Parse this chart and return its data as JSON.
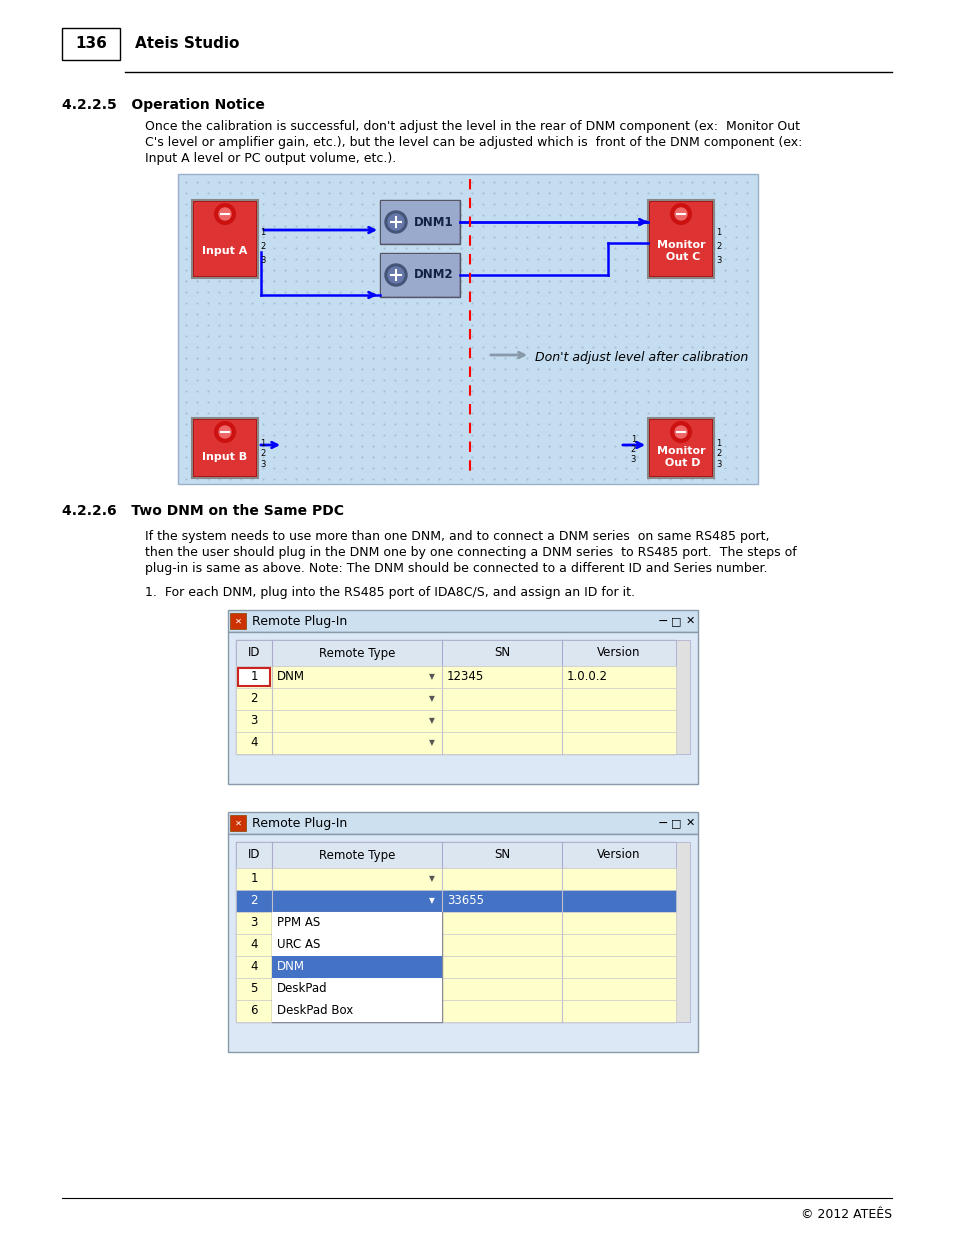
{
  "page_number": "136",
  "header_title": "Ateis Studio",
  "section_425": "4.2.2.5   Operation Notice",
  "para_425_line1": "Once the calibration is successful, don't adjust the level in the rear of DNM component (ex:  Monitor Out",
  "para_425_line2": "C's level or amplifier gain, etc.), but the level can be adjusted which is  front of the DNM component (ex:",
  "para_425_line3": "Input A level or PC output volume, etc.).",
  "section_426": "4.2.2.6   Two DNM on the Same PDC",
  "para_426_line1": "If the system needs to use more than one DNM, and to connect a DNM series  on same RS485 port,",
  "para_426_line2": "then the user should plug in the DNM one by one connecting a DNM series  to RS485 port.  The steps of",
  "para_426_line3": "plug-in is same as above. Note: The DNM should be connected to a different ID and Series number.",
  "step1_text": "1.  For each DNM, plug into the RS485 port of IDA8C/S, and assign an ID for it.",
  "footer_text": "© 2012 ATEÊS",
  "bg_color": "#ffffff",
  "diagram_bg": "#c5ddf0",
  "dot_color": "#a0bbd0",
  "t1_title": "Remote Plug-In",
  "t1_cols": [
    "ID",
    "Remote Type",
    "SN",
    "Version"
  ],
  "t1_data": [
    [
      "1",
      "DNM",
      "12345",
      "1.0.0.2"
    ],
    [
      "2",
      "",
      "",
      ""
    ],
    [
      "3",
      "",
      "",
      ""
    ],
    [
      "4",
      "",
      "",
      ""
    ]
  ],
  "t2_title": "Remote Plug-In",
  "t2_cols": [
    "ID",
    "Remote Type",
    "SN",
    "Version"
  ],
  "t2_data": [
    [
      "1",
      "",
      "",
      ""
    ],
    [
      "2",
      "",
      "33655",
      ""
    ],
    [
      "3",
      "PPM AS",
      "",
      ""
    ],
    [
      "4",
      "URC AS",
      "",
      ""
    ],
    [
      "4",
      "DNM",
      "",
      ""
    ],
    [
      "5",
      "DeskPad",
      "",
      ""
    ],
    [
      "6",
      "DeskPad Box",
      "",
      ""
    ]
  ],
  "row_yellow": "#ffffcc",
  "row_header": "#dce6f1",
  "row_blue": "#4472c4",
  "row_lightblue": "#a8c4e0",
  "win_chrome": "#cce0f0",
  "win_border": "#8899aa",
  "scrollbar_bg": "#e0e0e0"
}
